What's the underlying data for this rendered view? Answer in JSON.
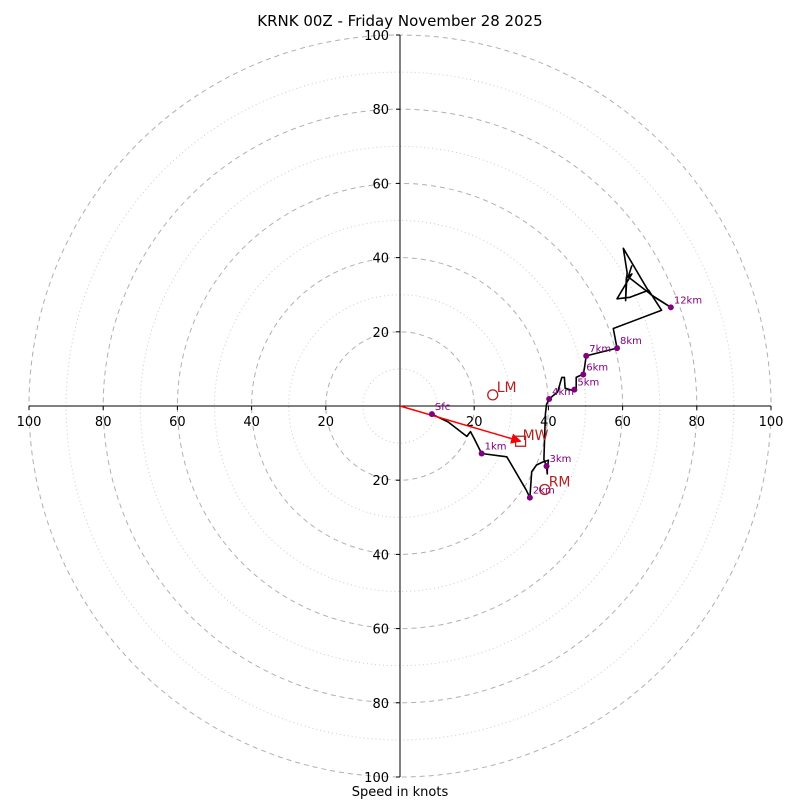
{
  "chart_data": {
    "type": "hodograph",
    "title": "KRNK 00Z - Friday November 28 2025",
    "xlabel": "Speed in knots",
    "range": [
      -100,
      100
    ],
    "ring_major": [
      20,
      40,
      60,
      80,
      100
    ],
    "ring_minor": [
      10,
      30,
      50,
      70,
      90
    ],
    "x_tick_labels": [
      "100",
      "80",
      "60",
      "40",
      "20",
      "20",
      "40",
      "60",
      "80",
      "100"
    ],
    "y_tick_labels": [
      "100",
      "80",
      "60",
      "40",
      "20",
      "20",
      "40",
      "60",
      "80",
      "100"
    ],
    "x_tick_values": [
      -100,
      -80,
      -60,
      -40,
      -20,
      20,
      40,
      60,
      80,
      100
    ],
    "y_tick_values": [
      100,
      80,
      60,
      40,
      20,
      -20,
      -40,
      -60,
      -80,
      -100
    ],
    "trace": [
      [
        8.6,
        -2.2
      ],
      [
        13,
        -4.3
      ],
      [
        18,
        -8.2
      ],
      [
        19,
        -6.9
      ],
      [
        20,
        -8.8
      ],
      [
        22,
        -12.8
      ],
      [
        28.8,
        -13.7
      ],
      [
        34,
        -22.6
      ],
      [
        35,
        -24.7
      ],
      [
        35.5,
        -17.7
      ],
      [
        36.8,
        -15.9
      ],
      [
        38.5,
        -15.1
      ],
      [
        40,
        -14.6
      ],
      [
        39.7,
        -17.4
      ],
      [
        39.7,
        -18.3
      ],
      [
        39.5,
        -16.2
      ],
      [
        38.8,
        -14.4
      ],
      [
        39.2,
        -2.2
      ],
      [
        39.5,
        0.4
      ],
      [
        40.2,
        1.9
      ],
      [
        42.5,
        3.8
      ],
      [
        43.6,
        7.7
      ],
      [
        44.3,
        7.7
      ],
      [
        44.5,
        4.8
      ],
      [
        46.8,
        4.1
      ],
      [
        47.5,
        4.4
      ],
      [
        47.5,
        7.7
      ],
      [
        48.5,
        8.2
      ],
      [
        49.4,
        8.5
      ],
      [
        49.7,
        10.2
      ],
      [
        50.2,
        13.5
      ],
      [
        58.5,
        15.6
      ],
      [
        57.5,
        20.9
      ],
      [
        70.5,
        25.8
      ],
      [
        67,
        31.2
      ],
      [
        62,
        29.3
      ],
      [
        58.5,
        28.9
      ],
      [
        62.5,
        35.6
      ],
      [
        61,
        34.5
      ],
      [
        60.8,
        28.4
      ],
      [
        61.2,
        36
      ],
      [
        60.2,
        42.5
      ],
      [
        67.5,
        30.1
      ],
      [
        73,
        26.6
      ],
      [
        68.5,
        29.4
      ],
      [
        61.5,
        34.8
      ],
      [
        62.5,
        37.9
      ]
    ],
    "height_markers": [
      {
        "label": "Sfc",
        "x": 8.6,
        "y": -2.2
      },
      {
        "label": "1km",
        "x": 22,
        "y": -12.8
      },
      {
        "label": "2km",
        "x": 35,
        "y": -24.7
      },
      {
        "label": "3km",
        "x": 39.5,
        "y": -16.2
      },
      {
        "label": "4km",
        "x": 40.2,
        "y": 1.9
      },
      {
        "label": "5km",
        "x": 47,
        "y": 4.4
      },
      {
        "label": "6km",
        "x": 49.4,
        "y": 8.5
      },
      {
        "label": "7km",
        "x": 50.2,
        "y": 13.5
      },
      {
        "label": "8km",
        "x": 58.5,
        "y": 15.6
      },
      {
        "label": "12km",
        "x": 73,
        "y": 26.6
      }
    ],
    "mean_wind": {
      "label": "MW",
      "x": 32.5,
      "y": -9.5
    },
    "left_mover": {
      "label": "LM",
      "x": 25,
      "y": 3
    },
    "right_mover": {
      "label": "RM",
      "x": 39,
      "y": -22.5
    },
    "shear_vector": {
      "from": [
        0,
        0
      ],
      "to": [
        32.5,
        -9.5
      ]
    },
    "colors": {
      "trace": "#000000",
      "markers": "#800080",
      "motion": "#b22222",
      "shear": "#ff0000",
      "ring": "#b0b0b0"
    }
  }
}
